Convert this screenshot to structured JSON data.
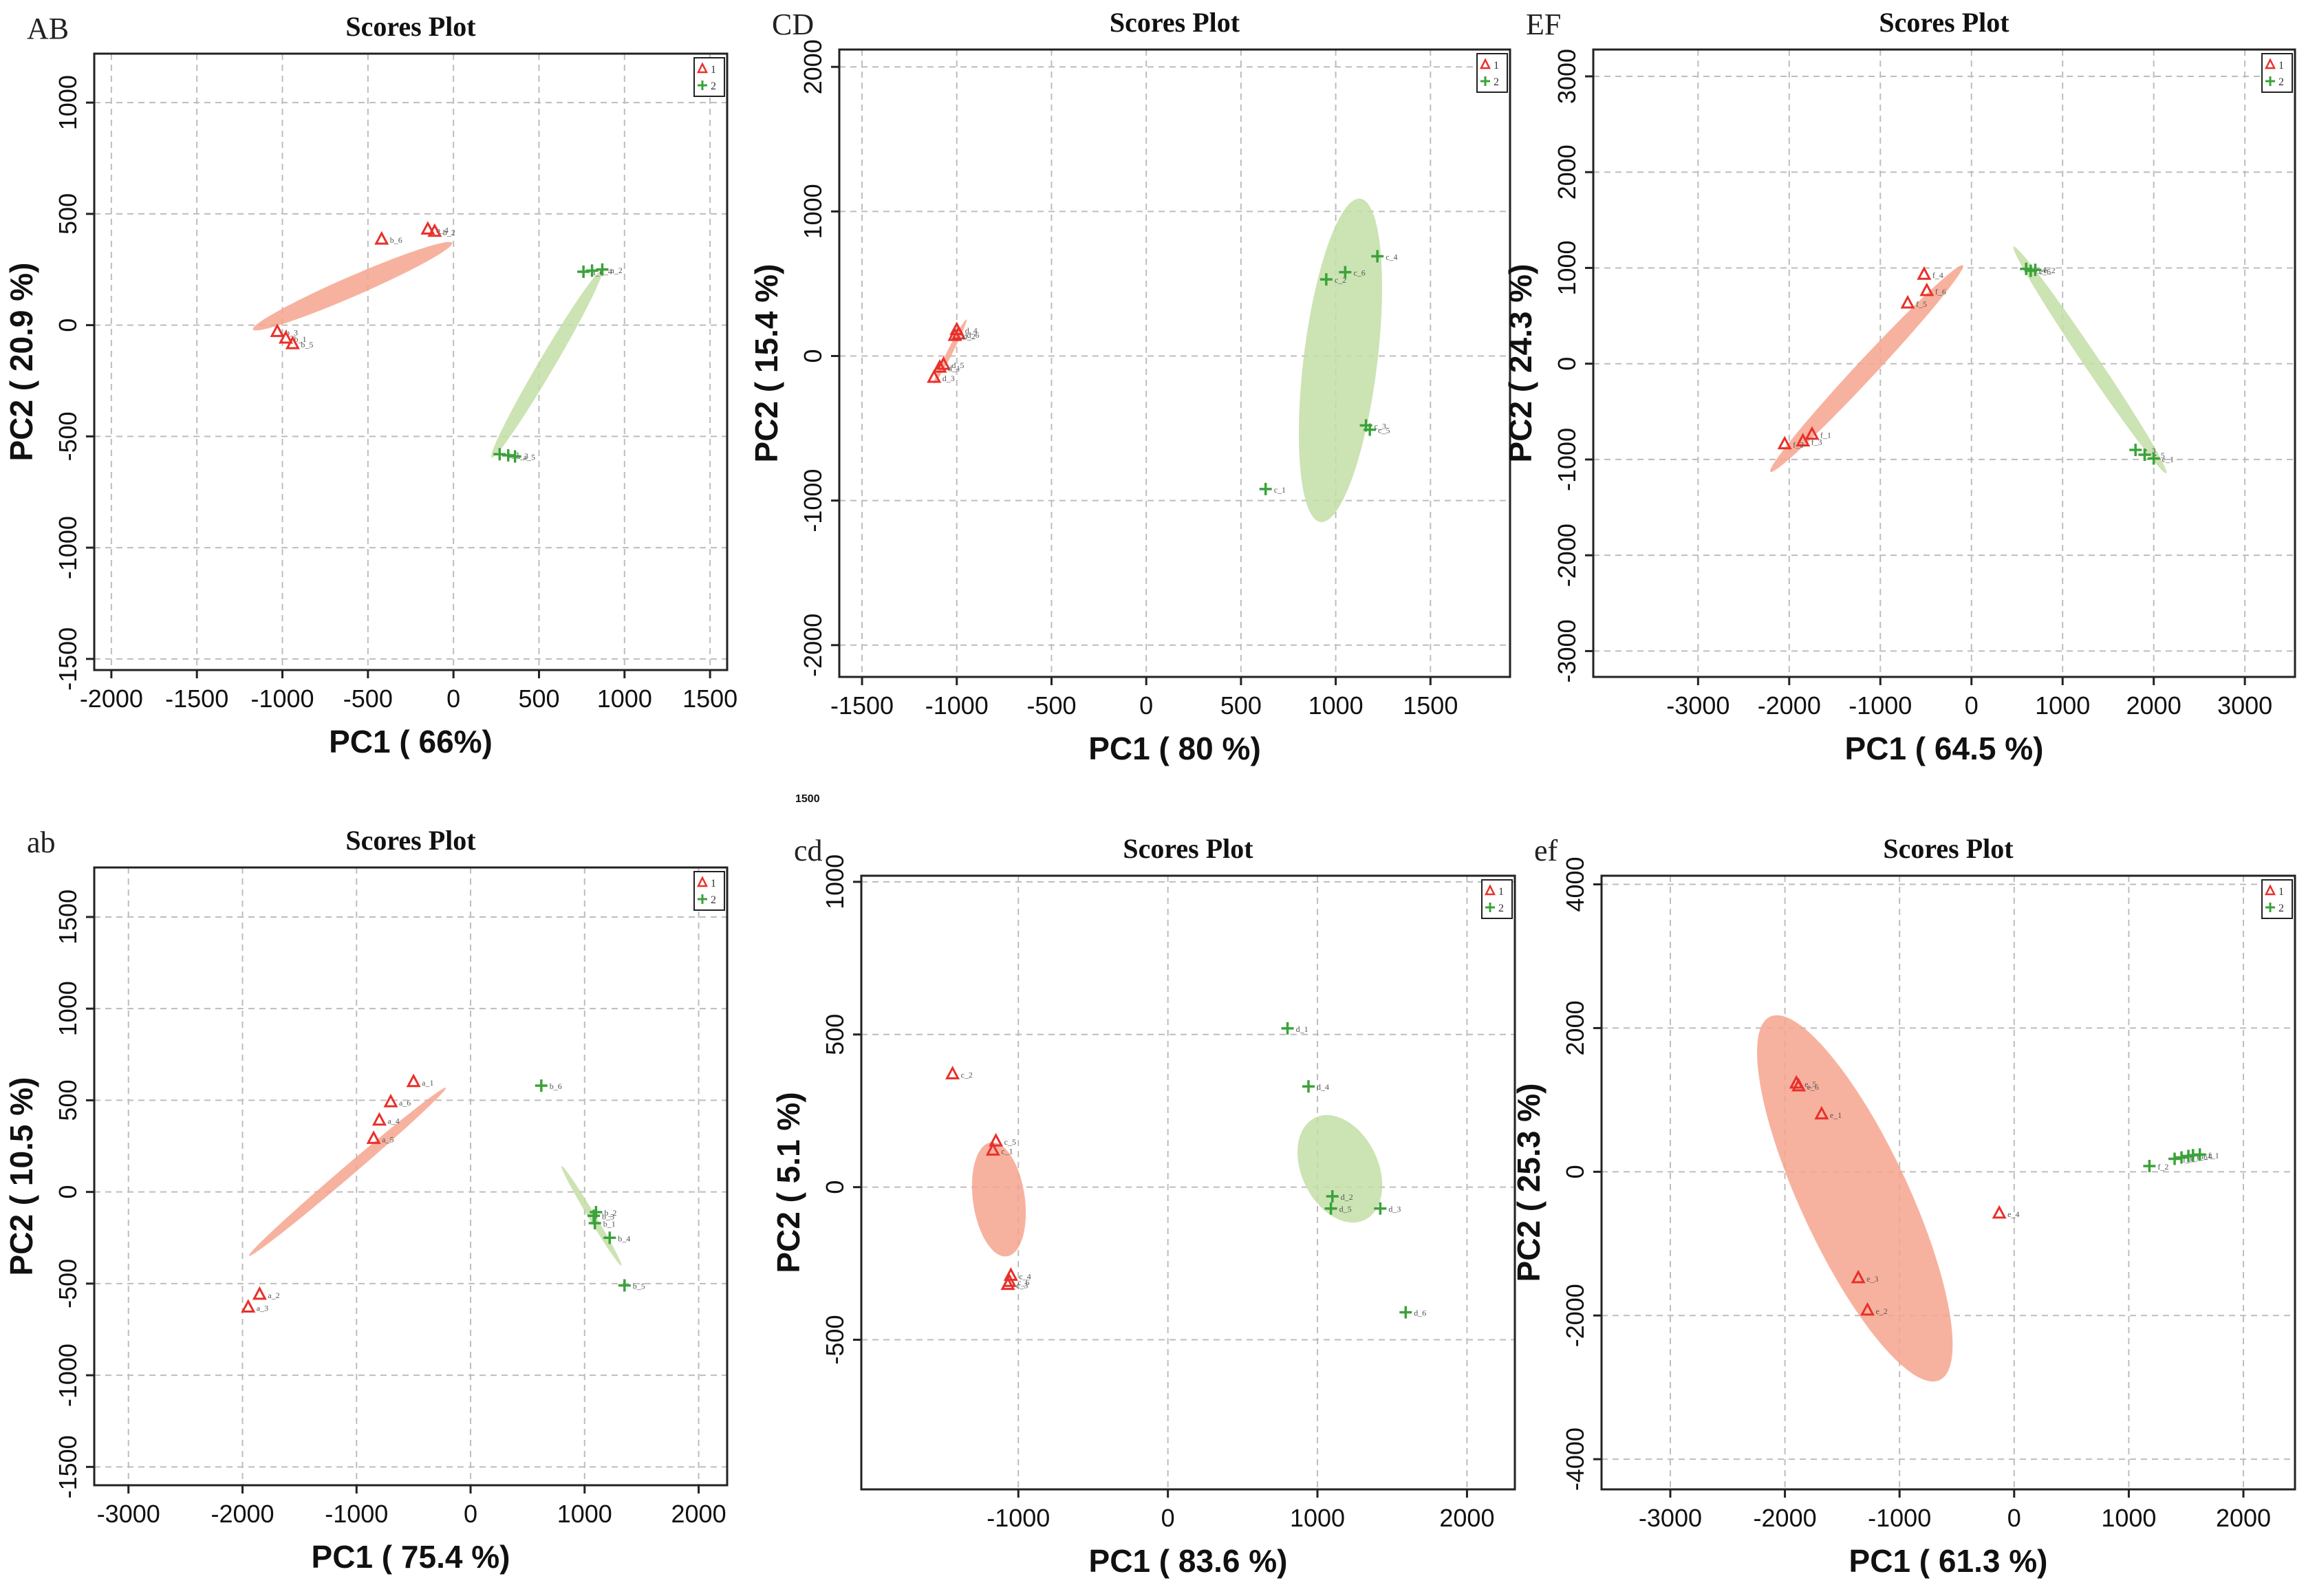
{
  "colors": {
    "group1": "#e8302a",
    "group2": "#3aa23a",
    "ellipse1": "#f6a58e",
    "ellipse2": "#c3dea6",
    "grid": "#bdbdbd"
  },
  "stray_text": "1500",
  "chart_data": [
    {
      "type": "scatter",
      "tag": "AB",
      "title": "Scores Plot",
      "xlabel": "PC1 ( 66%)",
      "ylabel": "PC2 ( 20.9 %)",
      "xlim": [
        -2100,
        1600
      ],
      "ylim": [
        -1550,
        1220
      ],
      "xticks": [
        -2000,
        -1500,
        -1000,
        -500,
        0,
        500,
        1000,
        1500
      ],
      "yticks": [
        -1500,
        -1000,
        -500,
        0,
        500,
        1000
      ],
      "legend": [
        "1",
        "2"
      ],
      "legend_position": "top-right",
      "series": [
        {
          "name": "1",
          "marker": "triangle",
          "points": [
            {
              "x": -420,
              "y": 385,
              "label": "b_6"
            },
            {
              "x": -150,
              "y": 430,
              "label": "b_4"
            },
            {
              "x": -110,
              "y": 420,
              "label": "b_2"
            },
            {
              "x": -1030,
              "y": -30,
              "label": "b_3"
            },
            {
              "x": -980,
              "y": -60,
              "label": "b_1"
            },
            {
              "x": -940,
              "y": -85,
              "label": "b_5"
            }
          ],
          "ellipse": {
            "cx": -590,
            "cy": 175,
            "rx": 1270,
            "ry": 90,
            "angle_deg": 23.5
          }
        },
        {
          "name": "2",
          "marker": "plus",
          "points": [
            {
              "x": 760,
              "y": 240,
              "label": "a_6"
            },
            {
              "x": 810,
              "y": 245,
              "label": "a_4"
            },
            {
              "x": 870,
              "y": 250,
              "label": "a_2"
            },
            {
              "x": 270,
              "y": -580,
              "label": "a_1"
            },
            {
              "x": 320,
              "y": -585,
              "label": "a_3"
            },
            {
              "x": 360,
              "y": -590,
              "label": "a_5"
            }
          ],
          "ellipse": {
            "cx": 545,
            "cy": -175,
            "rx": 1270,
            "ry": 70,
            "angle_deg": 59.5
          }
        }
      ]
    },
    {
      "type": "scatter",
      "tag": "CD",
      "title": "Scores Plot",
      "xlabel": "PC1 ( 80 %)",
      "ylabel": "PC2 ( 15.4 %)",
      "xlim": [
        -1620,
        1920
      ],
      "ylim": [
        -2220,
        2120
      ],
      "xticks": [
        -1500,
        -1000,
        -500,
        0,
        500,
        1000,
        1500
      ],
      "yticks": [
        -2000,
        -1000,
        0,
        1000,
        2000
      ],
      "legend": [
        "1",
        "2"
      ],
      "legend_position": "top-right",
      "series": [
        {
          "name": "1",
          "marker": "triangle",
          "points": [
            {
              "x": -1000,
              "y": 180,
              "label": "d_4"
            },
            {
              "x": -990,
              "y": 150,
              "label": "d_6"
            },
            {
              "x": -1010,
              "y": 140,
              "label": "d_2"
            },
            {
              "x": -1070,
              "y": -60,
              "label": "d_5"
            },
            {
              "x": -1090,
              "y": -80,
              "label": "d_1"
            },
            {
              "x": -1120,
              "y": -150,
              "label": "d_3"
            }
          ],
          "ellipse": {
            "cx": -1035,
            "cy": 30,
            "rx": 380,
            "ry": 38,
            "angle_deg": 63
          }
        },
        {
          "name": "2",
          "marker": "plus",
          "points": [
            {
              "x": 950,
              "y": 530,
              "label": "c_2"
            },
            {
              "x": 1050,
              "y": 580,
              "label": "c_6"
            },
            {
              "x": 1220,
              "y": 690,
              "label": "c_4"
            },
            {
              "x": 1160,
              "y": -480,
              "label": "c_3"
            },
            {
              "x": 1180,
              "y": -510,
              "label": "c_5"
            },
            {
              "x": 630,
              "y": -920,
              "label": "c_1"
            }
          ],
          "ellipse": {
            "cx": 1025,
            "cy": -30,
            "rx": 1720,
            "ry": 510,
            "angle_deg": 83
          }
        }
      ]
    },
    {
      "type": "scatter",
      "tag": "EF",
      "title": "Scores Plot",
      "xlabel": "PC1 ( 64.5 %)",
      "ylabel": "PC2 ( 24.3 %)",
      "xlim": [
        -4150,
        3550
      ],
      "ylim": [
        -3270,
        3280
      ],
      "xticks": [
        -3000,
        -2000,
        -1000,
        0,
        1000,
        2000,
        3000
      ],
      "yticks": [
        -3000,
        -2000,
        -1000,
        0,
        1000,
        2000,
        3000
      ],
      "legend": [
        "1",
        "2"
      ],
      "legend_position": "top-right",
      "series": [
        {
          "name": "1",
          "marker": "triangle",
          "points": [
            {
              "x": -520,
              "y": 930,
              "label": "f_4"
            },
            {
              "x": -490,
              "y": 760,
              "label": "f_6"
            },
            {
              "x": -700,
              "y": 630,
              "label": "f_5"
            },
            {
              "x": -1750,
              "y": -740,
              "label": "f_1"
            },
            {
              "x": -1850,
              "y": -810,
              "label": "f_3"
            },
            {
              "x": -2050,
              "y": -840,
              "label": "f_2"
            }
          ],
          "ellipse": {
            "cx": -1150,
            "cy": -50,
            "rx": 3100,
            "ry": 200,
            "angle_deg": 47
          }
        },
        {
          "name": "2",
          "marker": "plus",
          "points": [
            {
              "x": 600,
              "y": 990,
              "label": "e_4"
            },
            {
              "x": 650,
              "y": 970,
              "label": "e_6"
            },
            {
              "x": 700,
              "y": 980,
              "label": "e_2"
            },
            {
              "x": 1800,
              "y": -900,
              "label": "e_3"
            },
            {
              "x": 1900,
              "y": -950,
              "label": "e_5"
            },
            {
              "x": 2000,
              "y": -990,
              "label": "e_1"
            }
          ],
          "ellipse": {
            "cx": 1300,
            "cy": 40,
            "rx": 3000,
            "ry": 160,
            "angle_deg": -56
          }
        }
      ]
    },
    {
      "type": "scatter",
      "tag": "ab",
      "title": "Scores Plot",
      "xlabel": "PC1 ( 75.4 %)",
      "ylabel": "PC2 ( 10.5 %)",
      "xlim": [
        -3300,
        2250
      ],
      "ylim": [
        -1600,
        1770
      ],
      "xticks": [
        -3000,
        -2000,
        -1000,
        0,
        1000,
        2000
      ],
      "yticks": [
        -1500,
        -1000,
        -500,
        0,
        500,
        1000,
        1500
      ],
      "legend": [
        "1",
        "2"
      ],
      "legend_position": "top-right",
      "series": [
        {
          "name": "1",
          "marker": "triangle",
          "points": [
            {
              "x": -500,
              "y": 600,
              "label": "a_1"
            },
            {
              "x": -700,
              "y": 490,
              "label": "a_6"
            },
            {
              "x": -800,
              "y": 390,
              "label": "a_4"
            },
            {
              "x": -850,
              "y": 290,
              "label": "a_5"
            },
            {
              "x": -1850,
              "y": -560,
              "label": "a_2"
            },
            {
              "x": -1950,
              "y": -630,
              "label": "a_3"
            }
          ],
          "ellipse": {
            "cx": -1080,
            "cy": 110,
            "rx": 2270,
            "ry": 60,
            "angle_deg": 40.5
          }
        },
        {
          "name": "2",
          "marker": "plus",
          "points": [
            {
              "x": 620,
              "y": 580,
              "label": "b_6"
            },
            {
              "x": 1100,
              "y": -110,
              "label": "b_2"
            },
            {
              "x": 1080,
              "y": -130,
              "label": "b_3"
            },
            {
              "x": 1090,
              "y": -170,
              "label": "b_1"
            },
            {
              "x": 1220,
              "y": -250,
              "label": "b_4"
            },
            {
              "x": 1350,
              "y": -510,
              "label": "b_5"
            }
          ],
          "ellipse": {
            "cx": 1060,
            "cy": -130,
            "rx": 1020,
            "ry": 38,
            "angle_deg": -59
          }
        }
      ]
    },
    {
      "type": "scatter",
      "tag": "cd",
      "title": "Scores Plot",
      "xlabel": "PC1 ( 83.6 %)",
      "ylabel": "PC2 ( 5.1 %)",
      "xlim": [
        -2050,
        2320
      ],
      "ylim": [
        -990,
        1020
      ],
      "xticks": [
        -1000,
        0,
        1000,
        2000
      ],
      "yticks": [
        -500,
        0,
        500,
        1000
      ],
      "legend": [
        "1",
        "2"
      ],
      "legend_position": "top-right",
      "series": [
        {
          "name": "1",
          "marker": "triangle",
          "points": [
            {
              "x": -1440,
              "y": 370,
              "label": "c_2"
            },
            {
              "x": -1150,
              "y": 150,
              "label": "c_5"
            },
            {
              "x": -1170,
              "y": 120,
              "label": "c_1"
            },
            {
              "x": -1050,
              "y": -290,
              "label": "c_4"
            },
            {
              "x": -1060,
              "y": -310,
              "label": "c_6"
            },
            {
              "x": -1070,
              "y": -320,
              "label": "c_3"
            }
          ],
          "ellipse": {
            "cx": -1130,
            "cy": -40,
            "rx": 770,
            "ry": 170,
            "angle_deg": -82
          }
        },
        {
          "name": "2",
          "marker": "plus",
          "points": [
            {
              "x": 800,
              "y": 520,
              "label": "d_1"
            },
            {
              "x": 940,
              "y": 330,
              "label": "d_4"
            },
            {
              "x": 1100,
              "y": -30,
              "label": "d_2"
            },
            {
              "x": 1090,
              "y": -70,
              "label": "d_5"
            },
            {
              "x": 1420,
              "y": -70,
              "label": "d_3"
            },
            {
              "x": 1590,
              "y": -410,
              "label": "d_6"
            }
          ],
          "ellipse": {
            "cx": 1150,
            "cy": 60,
            "rx": 760,
            "ry": 250,
            "angle_deg": -64
          }
        }
      ]
    },
    {
      "type": "scatter",
      "tag": "ef",
      "title": "Scores Plot",
      "xlabel": "PC1 ( 61.3 %)",
      "ylabel": "PC2 ( 25.3 %)",
      "xlim": [
        -3600,
        2450
      ],
      "ylim": [
        -4420,
        4120
      ],
      "xticks": [
        -3000,
        -2000,
        -1000,
        0,
        1000,
        2000
      ],
      "yticks": [
        -4000,
        -2000,
        0,
        2000,
        4000
      ],
      "legend": [
        "1",
        "2"
      ],
      "legend_position": "top-right",
      "series": [
        {
          "name": "1",
          "marker": "triangle",
          "points": [
            {
              "x": -1900,
              "y": 1230,
              "label": "e_5"
            },
            {
              "x": -1880,
              "y": 1190,
              "label": "e_6"
            },
            {
              "x": -1680,
              "y": 800,
              "label": "e_1"
            },
            {
              "x": -130,
              "y": -580,
              "label": "e_4"
            },
            {
              "x": -1360,
              "y": -1480,
              "label": "e_3"
            },
            {
              "x": -1280,
              "y": -1930,
              "label": "e_2"
            }
          ],
          "ellipse": {
            "cx": -1390,
            "cy": -370,
            "rx": 3500,
            "ry": 1500,
            "angle_deg": -65
          }
        },
        {
          "name": "2",
          "marker": "plus",
          "points": [
            {
              "x": 1180,
              "y": 80,
              "label": "f_2"
            },
            {
              "x": 1400,
              "y": 180,
              "label": "f_3"
            },
            {
              "x": 1460,
              "y": 200,
              "label": "f_5"
            },
            {
              "x": 1520,
              "y": 220,
              "label": "f_6"
            },
            {
              "x": 1560,
              "y": 230,
              "label": "f_4"
            },
            {
              "x": 1620,
              "y": 240,
              "label": "f_1"
            }
          ],
          "ellipse": null
        }
      ]
    }
  ]
}
